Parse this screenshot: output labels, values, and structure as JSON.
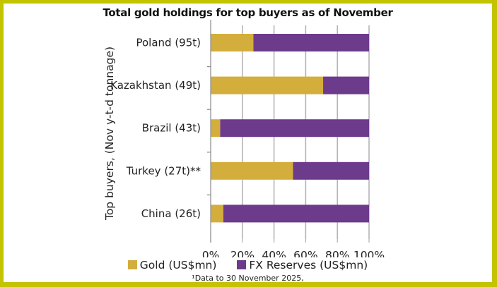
{
  "colors": {
    "frame": "#c3c300",
    "gold": "#d4ae3c",
    "fx": "#6d3b8b",
    "grid": "#b0b0b0"
  },
  "chart_data": {
    "type": "bar",
    "orientation": "horizontal",
    "stacked": "100%",
    "title": "Total gold holdings for top buyers as of November",
    "ylabel": "Top buyers, (Nov y-t-d tonnage)",
    "xlabel": "",
    "xlim": [
      0,
      100
    ],
    "xticks": [
      "0%",
      "20%",
      "40%",
      "60%",
      "80%",
      "100%"
    ],
    "grid": true,
    "legend_position": "bottom",
    "categories": [
      "Poland (95t)",
      "Kazakhstan (49t)",
      "Brazil (43t)",
      "Turkey (27t)**",
      "China (26t)"
    ],
    "series": [
      {
        "name": "Gold (US$mn)",
        "color": "#d4ae3c",
        "values": [
          27,
          71,
          6,
          52,
          8
        ]
      },
      {
        "name": "FX Reserves (US$mn)",
        "color": "#6d3b8b",
        "values": [
          73,
          29,
          94,
          48,
          92
        ]
      }
    ],
    "footnote": "¹Data to 30 November 2025,"
  }
}
